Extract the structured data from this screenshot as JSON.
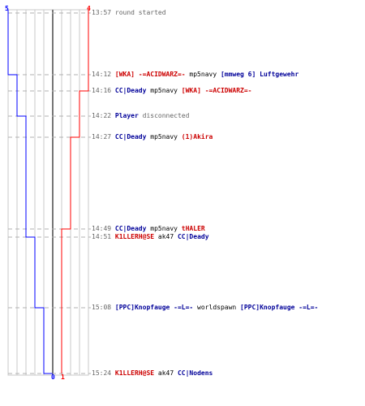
{
  "colors": {
    "team_blue": "#0000ff",
    "team_red": "#ff0000",
    "blue_name": "#000099",
    "red_name": "#cc0000",
    "time": "#666666",
    "weapon": "#000000",
    "grid": "#c8c8c8",
    "center_line": "#777777"
  },
  "scores": {
    "blue_start": "5",
    "red_start": "4",
    "blue_end": "0",
    "red_end": "1"
  },
  "events": [
    {
      "time": "13:57",
      "parts": [
        {
          "text": "round started",
          "role": "info"
        }
      ]
    },
    {
      "time": "14:12",
      "parts": [
        {
          "text": "[WKA] -=ACIDWARZ=-",
          "role": "red"
        },
        {
          "text": " mp5navy ",
          "role": "weapon"
        },
        {
          "text": "[mmweg 6] Luftgewehr",
          "role": "blue"
        }
      ]
    },
    {
      "time": "14:16",
      "parts": [
        {
          "text": "CC|Deady",
          "role": "blue"
        },
        {
          "text": " mp5navy ",
          "role": "weapon"
        },
        {
          "text": "[WKA] -=ACIDWARZ=-",
          "role": "red"
        }
      ]
    },
    {
      "time": "14:22",
      "parts": [
        {
          "text": "Player",
          "role": "blue"
        },
        {
          "text": " disconnected",
          "role": "info"
        }
      ]
    },
    {
      "time": "14:27",
      "parts": [
        {
          "text": "CC|Deady",
          "role": "blue"
        },
        {
          "text": " mp5navy ",
          "role": "weapon"
        },
        {
          "text": "(1)Akira",
          "role": "red"
        }
      ]
    },
    {
      "time": "14:49",
      "parts": [
        {
          "text": "CC|Deady",
          "role": "blue"
        },
        {
          "text": " mp5navy ",
          "role": "weapon"
        },
        {
          "text": "tHALER",
          "role": "red"
        }
      ]
    },
    {
      "time": "14:51",
      "parts": [
        {
          "text": "K1LLERH@SE",
          "role": "red"
        },
        {
          "text": " ak47 ",
          "role": "weapon"
        },
        {
          "text": "CC|Deady",
          "role": "blue"
        }
      ]
    },
    {
      "time": "15:08",
      "parts": [
        {
          "text": "[PPC]Knopfauge -=L=-",
          "role": "blue"
        },
        {
          "text": " worldspawn ",
          "role": "weapon"
        },
        {
          "text": "[PPC]Knopfauge -=L=-",
          "role": "blue"
        }
      ]
    },
    {
      "time": "15:24",
      "parts": [
        {
          "text": "K1LLERH@SE",
          "role": "red"
        },
        {
          "text": " ak47 ",
          "role": "weapon"
        },
        {
          "text": "CC|Nodens",
          "role": "blue"
        }
      ]
    }
  ]
}
